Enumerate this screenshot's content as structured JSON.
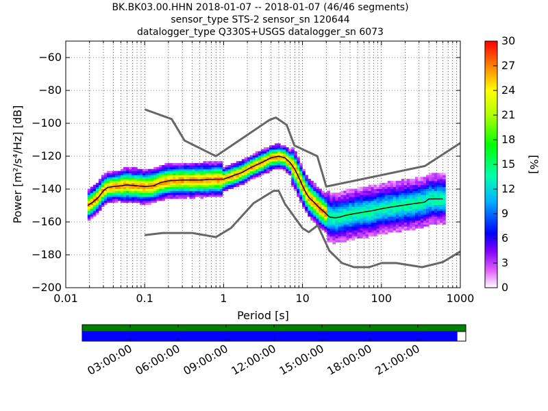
{
  "title": {
    "line1": "BK.BK03.00.HHN   2018-01-07 -- 2018-01-07  (46/46 segments)",
    "line2": "sensor_type STS-2 sensor_sn 120644",
    "line3": "datalogger_type Q330S+USGS datalogger_sn 6073"
  },
  "colors": {
    "noise_model": "#666666",
    "mode_line": "#000000",
    "coverage_top": "#008000",
    "coverage_data": "#0000ff",
    "coverage_gap": "#ffffff"
  },
  "chart_data": {
    "type": "heatmap",
    "xlabel": "Period [s]",
    "ylabel": "Power [m²/s⁴/Hz] [dB]",
    "x_scale": "log",
    "xlim": [
      0.01,
      1000
    ],
    "ylim": [
      -200,
      -50
    ],
    "x_ticks": [
      0.01,
      0.1,
      1,
      10,
      100,
      1000
    ],
    "x_tick_labels": [
      "0.01",
      "0.1",
      "1",
      "10",
      "100",
      "1000"
    ],
    "y_ticks": [
      -200,
      -180,
      -160,
      -140,
      -120,
      -100,
      -80,
      -60
    ],
    "y_tick_labels": [
      "−200",
      "−180",
      "−160",
      "−140",
      "−120",
      "−100",
      "−80",
      "−60"
    ],
    "grid": true,
    "colorbar": {
      "label": "[%]",
      "range": [
        0,
        30
      ],
      "ticks": [
        0,
        3,
        6,
        9,
        12,
        15,
        18,
        21,
        24,
        27,
        30
      ],
      "tick_labels": [
        "0",
        "3",
        "6",
        "9",
        "12",
        "15",
        "18",
        "21",
        "24",
        "27",
        "30"
      ]
    },
    "series": [
      {
        "role": "new-high-noise-model",
        "x": [
          0.1,
          0.22,
          0.32,
          0.8,
          3.8,
          4.6,
          6.3,
          7.9,
          15.4,
          20,
          354.8,
          1000
        ],
        "y": [
          -91.5,
          -97.4,
          -110.5,
          -120,
          -98,
          -96.5,
          -101,
          -113.5,
          -120,
          -138.5,
          -126,
          -112
        ]
      },
      {
        "role": "new-low-noise-model",
        "x": [
          0.1,
          0.17,
          0.4,
          0.8,
          1.24,
          2.4,
          4.3,
          5,
          6,
          10,
          12,
          15.6,
          21.9,
          31.6,
          45,
          70,
          101,
          154,
          328,
          600,
          1000
        ],
        "y": [
          -168,
          -166.7,
          -166.7,
          -169.2,
          -163.7,
          -148.6,
          -141.1,
          -141.1,
          -149,
          -163.8,
          -166.2,
          -162.1,
          -177.5,
          -185,
          -187.5,
          -187.5,
          -185,
          -185,
          -187.5,
          -184.4,
          -178
        ]
      },
      {
        "role": "mode",
        "x": [
          0.019,
          0.022,
          0.026,
          0.03,
          0.034,
          0.04,
          0.05,
          0.06,
          0.08,
          0.1,
          0.13,
          0.16,
          0.2,
          0.3,
          0.5,
          0.8,
          1.0,
          1.3,
          1.7,
          2.2,
          3.0,
          4.0,
          5.0,
          6.0,
          7.0,
          8.0,
          9.0,
          10,
          11,
          12,
          14,
          16,
          19,
          22,
          26,
          30,
          35,
          45,
          60,
          80,
          100,
          130,
          180,
          250,
          350,
          400,
          500,
          600
        ],
        "y": [
          -150,
          -148,
          -145,
          -141,
          -139,
          -138.5,
          -138,
          -137.5,
          -138,
          -138.5,
          -138,
          -136,
          -135,
          -134.5,
          -134.5,
          -134,
          -134,
          -132,
          -130,
          -127,
          -124,
          -121,
          -120,
          -121,
          -124,
          -128,
          -133,
          -138,
          -142,
          -145,
          -148,
          -151,
          -154,
          -157,
          -157.5,
          -157,
          -156,
          -155,
          -154,
          -153,
          -152,
          -151,
          -150,
          -149,
          -148,
          -146,
          -146,
          -146
        ]
      }
    ]
  },
  "coverage": {
    "ticks": [
      "03:00:00",
      "06:00:00",
      "09:00:00",
      "12:00:00",
      "15:00:00",
      "18:00:00",
      "21:00:00"
    ],
    "data_fraction": 0.978
  }
}
